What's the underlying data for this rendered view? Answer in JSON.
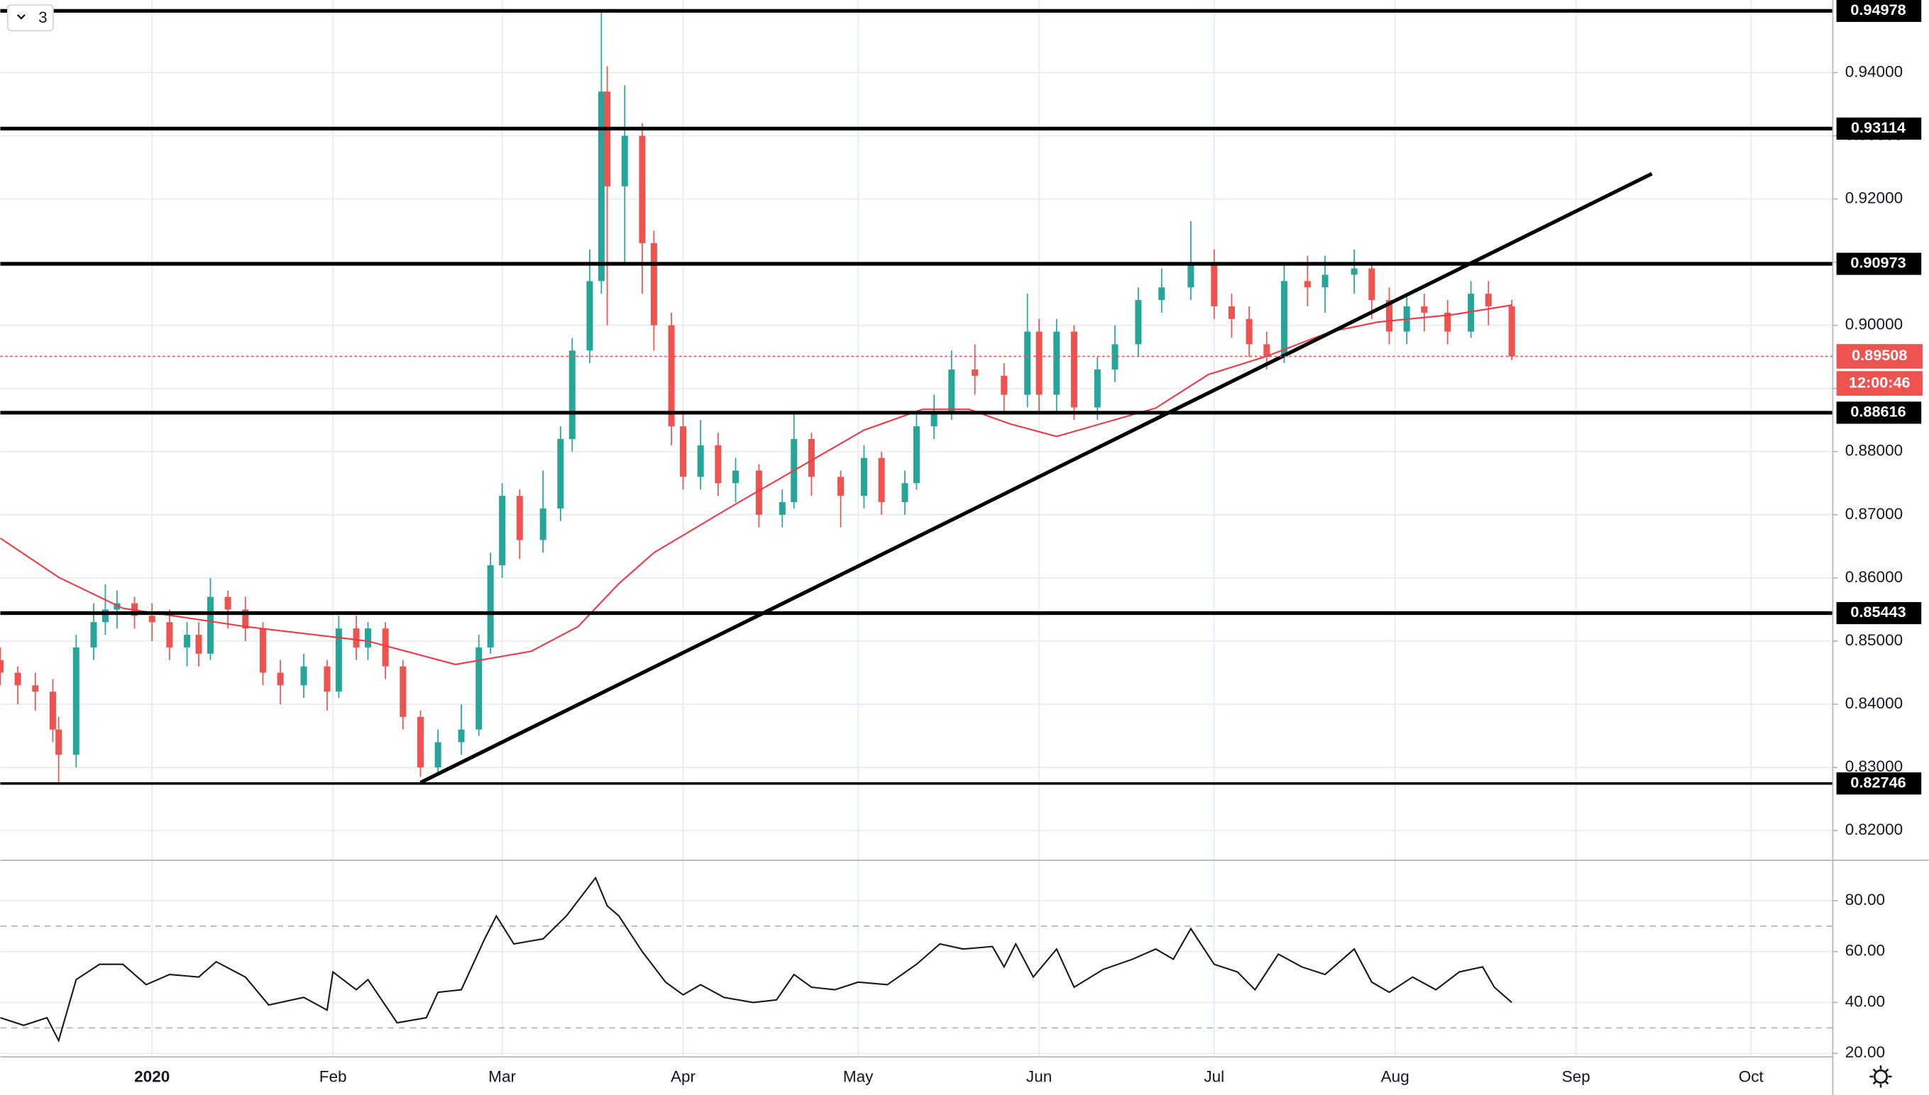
{
  "toolbar": {
    "text": "3"
  },
  "chart_data": [
    {
      "type": "candlestick",
      "up_color": "#26a69a",
      "down_color": "#ef5350",
      "grid": true,
      "xlim": [
        -26,
        288
      ],
      "xticks": [
        {
          "value": 0,
          "label": "2020"
        },
        {
          "value": 31,
          "label": "Feb"
        },
        {
          "value": 60,
          "label": "Mar"
        },
        {
          "value": 91,
          "label": "Apr"
        },
        {
          "value": 121,
          "label": "May"
        },
        {
          "value": 152,
          "label": "Jun"
        },
        {
          "value": 182,
          "label": "Jul"
        },
        {
          "value": 213,
          "label": "Aug"
        },
        {
          "value": 244,
          "label": "Sep"
        },
        {
          "value": 274,
          "label": "Oct"
        }
      ],
      "ylim": [
        0.8153,
        0.9515
      ],
      "yticks": [
        {
          "value": 0.82,
          "label": "0.82000"
        },
        {
          "value": 0.83,
          "label": "0.83000"
        },
        {
          "value": 0.84,
          "label": "0.84000"
        },
        {
          "value": 0.85,
          "label": "0.85000"
        },
        {
          "value": 0.86,
          "label": "0.86000"
        },
        {
          "value": 0.87,
          "label": "0.87000"
        },
        {
          "value": 0.88,
          "label": "0.88000"
        },
        {
          "value": 0.89,
          "label": "0.89000"
        },
        {
          "value": 0.9,
          "label": "0.90000"
        },
        {
          "value": 0.91,
          "label": "0.91000"
        },
        {
          "value": 0.92,
          "label": "0.92000"
        },
        {
          "value": 0.93,
          "label": "0.93000"
        },
        {
          "value": 0.94,
          "label": "0.94000"
        }
      ],
      "x": [
        -26,
        -23,
        -20,
        -17,
        -16,
        -13,
        -10,
        -8,
        -6,
        -3,
        0,
        3,
        6,
        8,
        10,
        13,
        16,
        19,
        22,
        26,
        30,
        32,
        35,
        37,
        40,
        43,
        46,
        49,
        53,
        56,
        58,
        60,
        63,
        67,
        70,
        72,
        75,
        77,
        78,
        81,
        84,
        86,
        89,
        91,
        94,
        97,
        100,
        104,
        108,
        110,
        113,
        118,
        122,
        125,
        129,
        131,
        134,
        137,
        141,
        146,
        150,
        152,
        155,
        158,
        162,
        165,
        169,
        173,
        178,
        182,
        185,
        188,
        191,
        194,
        198,
        201,
        206,
        209,
        212,
        215,
        218,
        222,
        226,
        229,
        233
      ],
      "open": [
        0.847,
        0.845,
        0.843,
        0.842,
        0.836,
        0.832,
        0.849,
        0.853,
        0.855,
        0.856,
        0.854,
        0.853,
        0.849,
        0.851,
        0.848,
        0.857,
        0.855,
        0.852,
        0.845,
        0.843,
        0.846,
        0.842,
        0.852,
        0.849,
        0.852,
        0.846,
        0.838,
        0.83,
        0.834,
        0.836,
        0.849,
        0.862,
        0.873,
        0.866,
        0.871,
        0.882,
        0.896,
        0.907,
        0.937,
        0.922,
        0.93,
        0.913,
        0.9,
        0.884,
        0.876,
        0.881,
        0.875,
        0.877,
        0.87,
        0.872,
        0.882,
        0.876,
        0.873,
        0.879,
        0.872,
        0.875,
        0.884,
        0.886,
        0.893,
        0.892,
        0.889,
        0.899,
        0.889,
        0.899,
        0.887,
        0.893,
        0.897,
        0.904,
        0.906,
        0.91,
        0.903,
        0.901,
        0.897,
        0.895,
        0.907,
        0.906,
        0.908,
        0.909,
        0.904,
        0.899,
        0.903,
        0.902,
        0.899,
        0.905,
        0.903
      ],
      "high": [
        0.849,
        0.846,
        0.845,
        0.844,
        0.838,
        0.851,
        0.856,
        0.859,
        0.858,
        0.857,
        0.856,
        0.855,
        0.853,
        0.853,
        0.86,
        0.858,
        0.857,
        0.853,
        0.847,
        0.848,
        0.847,
        0.854,
        0.854,
        0.853,
        0.853,
        0.847,
        0.839,
        0.836,
        0.84,
        0.851,
        0.864,
        0.875,
        0.874,
        0.877,
        0.884,
        0.898,
        0.912,
        0.9498,
        0.941,
        0.938,
        0.932,
        0.915,
        0.902,
        0.886,
        0.885,
        0.883,
        0.879,
        0.878,
        0.874,
        0.886,
        0.883,
        0.877,
        0.881,
        0.88,
        0.877,
        0.886,
        0.889,
        0.896,
        0.897,
        0.894,
        0.905,
        0.901,
        0.901,
        0.9,
        0.895,
        0.9,
        0.906,
        0.909,
        0.9165,
        0.912,
        0.905,
        0.903,
        0.899,
        0.91,
        0.911,
        0.911,
        0.912,
        0.91,
        0.906,
        0.905,
        0.905,
        0.904,
        0.907,
        0.907,
        0.904
      ],
      "low": [
        0.843,
        0.84,
        0.839,
        0.834,
        0.8275,
        0.83,
        0.847,
        0.851,
        0.852,
        0.852,
        0.85,
        0.847,
        0.846,
        0.846,
        0.847,
        0.852,
        0.85,
        0.843,
        0.84,
        0.841,
        0.839,
        0.841,
        0.847,
        0.847,
        0.844,
        0.836,
        0.8285,
        0.829,
        0.832,
        0.835,
        0.848,
        0.86,
        0.863,
        0.864,
        0.869,
        0.88,
        0.894,
        0.905,
        0.9,
        0.91,
        0.905,
        0.896,
        0.881,
        0.874,
        0.874,
        0.873,
        0.872,
        0.868,
        0.868,
        0.871,
        0.873,
        0.868,
        0.871,
        0.87,
        0.87,
        0.874,
        0.882,
        0.885,
        0.889,
        0.886,
        0.887,
        0.886,
        0.886,
        0.885,
        0.885,
        0.891,
        0.895,
        0.902,
        0.904,
        0.901,
        0.898,
        0.895,
        0.893,
        0.894,
        0.903,
        0.902,
        0.905,
        0.901,
        0.897,
        0.897,
        0.899,
        0.897,
        0.898,
        0.9,
        0.8945
      ],
      "close": [
        0.845,
        0.843,
        0.842,
        0.836,
        0.832,
        0.849,
        0.853,
        0.855,
        0.856,
        0.854,
        0.853,
        0.849,
        0.851,
        0.848,
        0.857,
        0.855,
        0.852,
        0.845,
        0.843,
        0.846,
        0.842,
        0.852,
        0.849,
        0.852,
        0.846,
        0.838,
        0.83,
        0.834,
        0.836,
        0.849,
        0.862,
        0.873,
        0.866,
        0.871,
        0.882,
        0.896,
        0.907,
        0.937,
        0.922,
        0.93,
        0.913,
        0.9,
        0.884,
        0.876,
        0.881,
        0.875,
        0.877,
        0.87,
        0.872,
        0.882,
        0.876,
        0.873,
        0.879,
        0.872,
        0.875,
        0.884,
        0.886,
        0.893,
        0.892,
        0.889,
        0.899,
        0.889,
        0.899,
        0.887,
        0.893,
        0.897,
        0.904,
        0.906,
        0.91,
        0.903,
        0.901,
        0.897,
        0.895,
        0.907,
        0.906,
        0.908,
        0.909,
        0.904,
        0.899,
        0.903,
        0.902,
        0.899,
        0.905,
        0.903,
        0.89508
      ],
      "moving_average": {
        "color": "#f23645",
        "x": [
          -26,
          -16,
          -5,
          16,
          37,
          52,
          65,
          73,
          80,
          86,
          100,
          122,
          132,
          140,
          147,
          155,
          172,
          181,
          191,
          202,
          210,
          223,
          233
        ],
        "values": [
          0.8663,
          0.8601,
          0.8552,
          0.8523,
          0.85,
          0.8463,
          0.8484,
          0.8523,
          0.8591,
          0.864,
          0.8717,
          0.8834,
          0.8867,
          0.8867,
          0.8844,
          0.8824,
          0.8869,
          0.8922,
          0.8951,
          0.899,
          0.9005,
          0.9017,
          0.9032
        ]
      },
      "trendline": {
        "x": [
          46,
          257
        ],
        "values": [
          0.8276,
          0.924
        ]
      },
      "levels": [
        0.94978,
        0.93114,
        0.90973,
        0.88616,
        0.85443,
        0.82746
      ],
      "current_price": {
        "value": 0.89508,
        "label": "0.89508",
        "timer": "12:00:46",
        "color": "#ef5350"
      }
    },
    {
      "type": "line",
      "color": "#131722",
      "ylim": [
        18.6,
        95.9
      ],
      "yticks": [
        {
          "value": 20,
          "label": "20.00"
        },
        {
          "value": 40,
          "label": "40.00"
        },
        {
          "value": 60,
          "label": "60.00"
        },
        {
          "value": 80,
          "label": "80.00"
        }
      ],
      "bands": [
        70,
        30
      ],
      "x": [
        -26,
        -22,
        -18,
        -16,
        -13,
        -9,
        -5,
        -1,
        3,
        8,
        11,
        16,
        20,
        26,
        30,
        31,
        35,
        37,
        42,
        47,
        49,
        53,
        57,
        59,
        62,
        67,
        71,
        76,
        78,
        80,
        84,
        88,
        91,
        94,
        98,
        103,
        107,
        110,
        113,
        117,
        121,
        126,
        131,
        135,
        139,
        144,
        146,
        148,
        151,
        155,
        158,
        163,
        168,
        172,
        175,
        178,
        182,
        186,
        189,
        193,
        197,
        201,
        206,
        209,
        212,
        216,
        220,
        224,
        228,
        230,
        233
      ],
      "values": [
        34,
        31,
        34,
        25,
        49,
        55,
        55,
        47,
        51,
        50,
        56,
        50,
        39,
        42,
        37,
        52,
        45,
        49,
        32,
        34,
        44,
        45,
        65,
        74,
        63,
        65,
        74,
        89,
        78,
        74,
        60,
        48,
        43,
        47,
        42,
        40,
        41,
        51,
        46,
        45,
        48,
        47,
        55,
        63,
        61,
        62,
        54,
        63,
        50,
        61,
        46,
        53,
        57,
        61,
        57,
        69,
        55,
        52,
        45,
        59,
        54,
        51,
        61,
        48,
        44,
        50,
        45,
        52,
        54,
        46,
        40
      ]
    }
  ]
}
